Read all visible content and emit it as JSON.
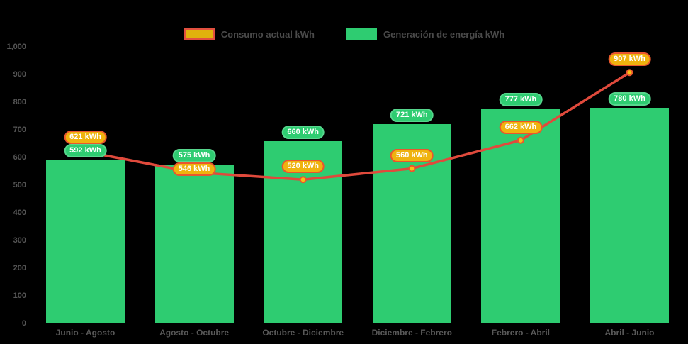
{
  "colors": {
    "background": "#000000",
    "bar": "#2ecc71",
    "bar_pill_border": "#57d68d",
    "line": "#e04a3c",
    "marker_fill": "#f6c213",
    "marker_stroke": "#e9562e",
    "consumo_pill_fill": "#efb30e",
    "consumo_pill_border": "#e9562e",
    "legend_consumo_fill": "#e0b20c",
    "legend_consumo_border": "#e2503f",
    "axis_text": "#565656"
  },
  "chart_data": {
    "type": "bar",
    "categories": [
      "Junio - Agosto",
      "Agosto - Octubre",
      "Octubre - Diciembre",
      "Diciembre - Febrero",
      "Febrero - Abril",
      "Abril - Junio"
    ],
    "series": [
      {
        "name": "Consumo actual kWh",
        "type": "line",
        "values": [
          621,
          546,
          520,
          560,
          662,
          907
        ]
      },
      {
        "name": "Generación de energía kWh",
        "type": "bar",
        "values": [
          592,
          575,
          660,
          721,
          777,
          780
        ]
      }
    ],
    "label_suffix": " kWh",
    "ylim": [
      0,
      1000
    ],
    "yticks": [
      0,
      100,
      200,
      300,
      400,
      500,
      600,
      700,
      800,
      900,
      1000
    ],
    "ytick_labels": [
      "0",
      "100",
      "200",
      "300",
      "400",
      "500",
      "600",
      "700",
      "800",
      "900",
      "1,000"
    ],
    "legend_position": "top",
    "grid": false
  }
}
